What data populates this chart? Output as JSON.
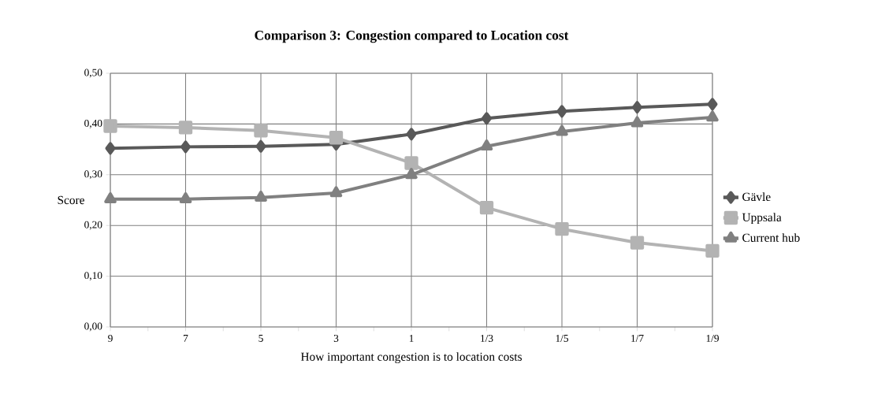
{
  "chart_data": {
    "type": "line",
    "title": "Comparison 3: Congestion compared to Location cost",
    "xlabel": "How important congestion is to location costs",
    "ylabel": "Score",
    "categories": [
      "9",
      "7",
      "5",
      "3",
      "1",
      "1/3",
      "1/5",
      "1/7",
      "1/9"
    ],
    "series": [
      {
        "name": "Gävle",
        "color": "#595959",
        "marker": "diamond",
        "values": [
          0.352,
          0.355,
          0.356,
          0.36,
          0.38,
          0.411,
          0.425,
          0.433,
          0.439
        ]
      },
      {
        "name": "Uppsala",
        "color": "#b3b3b3",
        "marker": "square",
        "values": [
          0.396,
          0.393,
          0.387,
          0.373,
          0.323,
          0.235,
          0.193,
          0.166,
          0.15
        ]
      },
      {
        "name": "Current hub",
        "color": "#808080",
        "marker": "triangle",
        "values": [
          0.252,
          0.252,
          0.255,
          0.264,
          0.3,
          0.356,
          0.385,
          0.402,
          0.413
        ]
      }
    ],
    "ylim": [
      0,
      0.5
    ],
    "yticks": [
      {
        "value": 0,
        "label": "0,00"
      },
      {
        "value": 0.1,
        "label": "0,10"
      },
      {
        "value": 0.2,
        "label": "0,20"
      },
      {
        "value": 0.3,
        "label": "0,30"
      },
      {
        "value": 0.4,
        "label": "0,40"
      },
      {
        "value": 0.5,
        "label": "0,50"
      }
    ],
    "grid": true,
    "legend": "right",
    "line_style": "solid"
  }
}
